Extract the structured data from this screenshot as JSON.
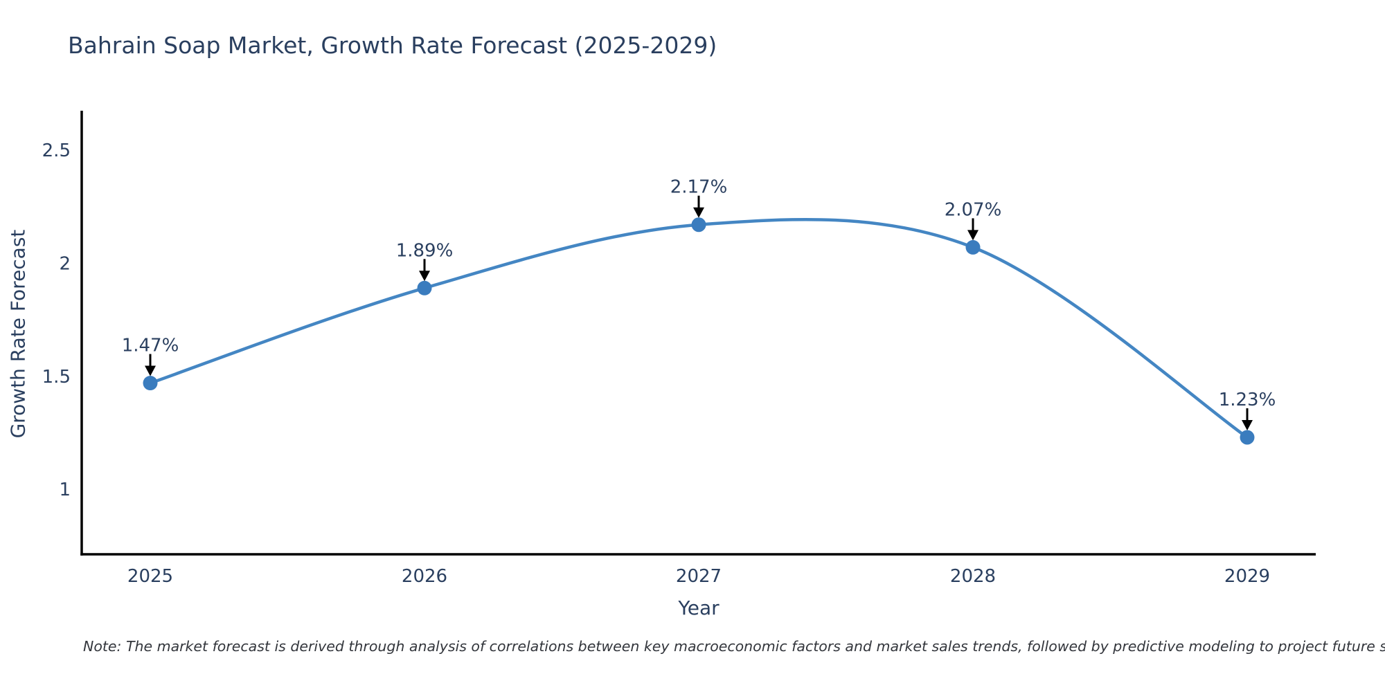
{
  "note": "Note: The market forecast is derived through analysis of correlations between key macroeconomic factors and market sales trends, followed by predictive modeling to project future sales",
  "chart_data": {
    "type": "line",
    "line_shape": "spline",
    "title": "Bahrain Soap Market, Growth Rate Forecast (2025-2029)",
    "xlabel": "Year",
    "ylabel": "Growth Rate Forecast",
    "x": [
      2025,
      2026,
      2027,
      2028,
      2029
    ],
    "values": [
      1.47,
      1.89,
      2.17,
      2.07,
      1.23
    ],
    "point_labels": [
      "1.47%",
      "1.89%",
      "2.17%",
      "2.07%",
      "1.23%"
    ],
    "xticks": [
      "2025",
      "2026",
      "2027",
      "2028",
      "2029"
    ],
    "yticks": [
      "1",
      "1.5",
      "2",
      "2.5"
    ],
    "xlim": [
      2024.75,
      2029.25
    ],
    "ylim": [
      0.713,
      2.674
    ],
    "grid": false,
    "legend": "none",
    "line_color": "#4486c3",
    "marker_color": "#3a7cbe",
    "axis_color": "#000000",
    "arrow_color": "#000000",
    "text_color": "#2a3f5f"
  }
}
